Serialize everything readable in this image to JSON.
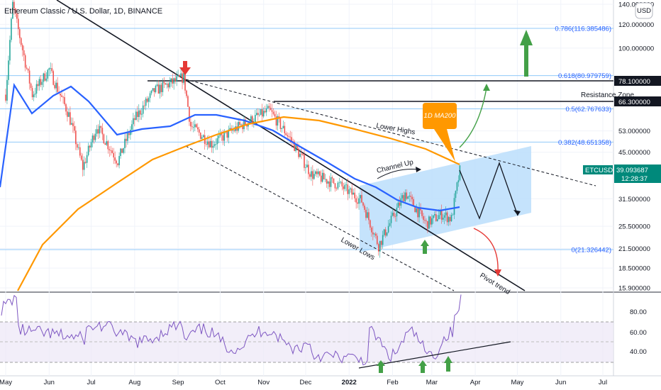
{
  "header": {
    "title": "Ethereum Classic / U.S. Dollar, 1D, BINANCE",
    "currency_badge": "USD"
  },
  "price_axis": {
    "ticks": [
      "140.000000",
      "120.000000",
      "100.000000",
      "78.100000",
      "66.300000",
      "53.000000",
      "45.000000",
      "39.093687",
      "31.500000",
      "25.500000",
      "21.500000",
      "18.500000",
      "15.900000"
    ],
    "log_scale": true
  },
  "time_axis": {
    "labels": [
      "May",
      "Jun",
      "Jul",
      "Aug",
      "Sep",
      "Oct",
      "Nov",
      "Dec",
      "2022",
      "Feb",
      "Mar",
      "Apr",
      "May",
      "Jun",
      "Jul"
    ]
  },
  "last_price": {
    "symbol": "ETCUSD",
    "price": "39.093687",
    "countdown": "12:28:37",
    "color": "#00897b"
  },
  "levels": [
    {
      "value": 78.1,
      "label": "78.100000"
    },
    {
      "value": 66.3,
      "label": "66.300000"
    }
  ],
  "fib_levels": [
    {
      "ratio": "0.786",
      "value": 116.385486,
      "label": "0.786(116.385486)"
    },
    {
      "ratio": "0.618",
      "value": 80.979759,
      "label": "0.618(80.979759)"
    },
    {
      "ratio": "0.5",
      "value": 62.767633,
      "label": "0.5(62.767633)"
    },
    {
      "ratio": "0.382",
      "value": 48.651358,
      "label": "0.382(48.651358)"
    },
    {
      "ratio": "0",
      "value": 21.326442,
      "label": "0(21.326442)"
    }
  ],
  "annotations": {
    "resistance": "Resistance Zone",
    "lower_highs": "Lower Highs",
    "lower_lows": "Lower Lows",
    "channel_up": "Channel Up",
    "pivot_trend": "Pivot trend",
    "ma_label": "1D MA200"
  },
  "rsi": {
    "ticks": [
      "80.00",
      "60.00",
      "40.00"
    ],
    "band": [
      30,
      70
    ]
  },
  "colors": {
    "candle_up": "#26a69a",
    "candle_down": "#ef5350",
    "ma_blue": "#2962ff",
    "ma200": "#ff9800",
    "channel": "#bbdefb",
    "rsi_line": "#7e57c2",
    "arrow_green": "#43a047",
    "arrow_red": "#e53935",
    "fib": "#2962ff"
  },
  "chart_data": {
    "type": "candlestick",
    "symbol": "ETCUSD",
    "timeframe": "1D",
    "y_scale": "log",
    "ylim": [
      15.9,
      140
    ],
    "price_path_approx": [
      {
        "date": "2021-05-01",
        "close": 70
      },
      {
        "date": "2021-05-06",
        "close": 140
      },
      {
        "date": "2021-05-20",
        "close": 70
      },
      {
        "date": "2021-06-01",
        "close": 85
      },
      {
        "date": "2021-06-15",
        "close": 60
      },
      {
        "date": "2021-06-25",
        "close": 40
      },
      {
        "date": "2021-07-05",
        "close": 55
      },
      {
        "date": "2021-07-20",
        "close": 42
      },
      {
        "date": "2021-08-01",
        "close": 58
      },
      {
        "date": "2021-08-15",
        "close": 72
      },
      {
        "date": "2021-09-05",
        "close": 80
      },
      {
        "date": "2021-09-10",
        "close": 55
      },
      {
        "date": "2021-09-25",
        "close": 48
      },
      {
        "date": "2021-10-15",
        "close": 55
      },
      {
        "date": "2021-11-05",
        "close": 62
      },
      {
        "date": "2021-11-20",
        "close": 50
      },
      {
        "date": "2021-12-05",
        "close": 38
      },
      {
        "date": "2021-12-25",
        "close": 35
      },
      {
        "date": "2022-01-10",
        "close": 31
      },
      {
        "date": "2022-01-22",
        "close": 22
      },
      {
        "date": "2022-02-10",
        "close": 33
      },
      {
        "date": "2022-02-25",
        "close": 26
      },
      {
        "date": "2022-03-08",
        "close": 28
      },
      {
        "date": "2022-03-15",
        "close": 27
      },
      {
        "date": "2022-03-21",
        "close": 39.09
      }
    ],
    "ma200_approx": [
      {
        "date": "2021-08-01",
        "value": 30
      },
      {
        "date": "2021-10-15",
        "value": 48
      },
      {
        "date": "2021-11-15",
        "value": 56
      },
      {
        "date": "2022-01-15",
        "value": 50
      },
      {
        "date": "2022-03-21",
        "value": 42
      }
    ]
  }
}
